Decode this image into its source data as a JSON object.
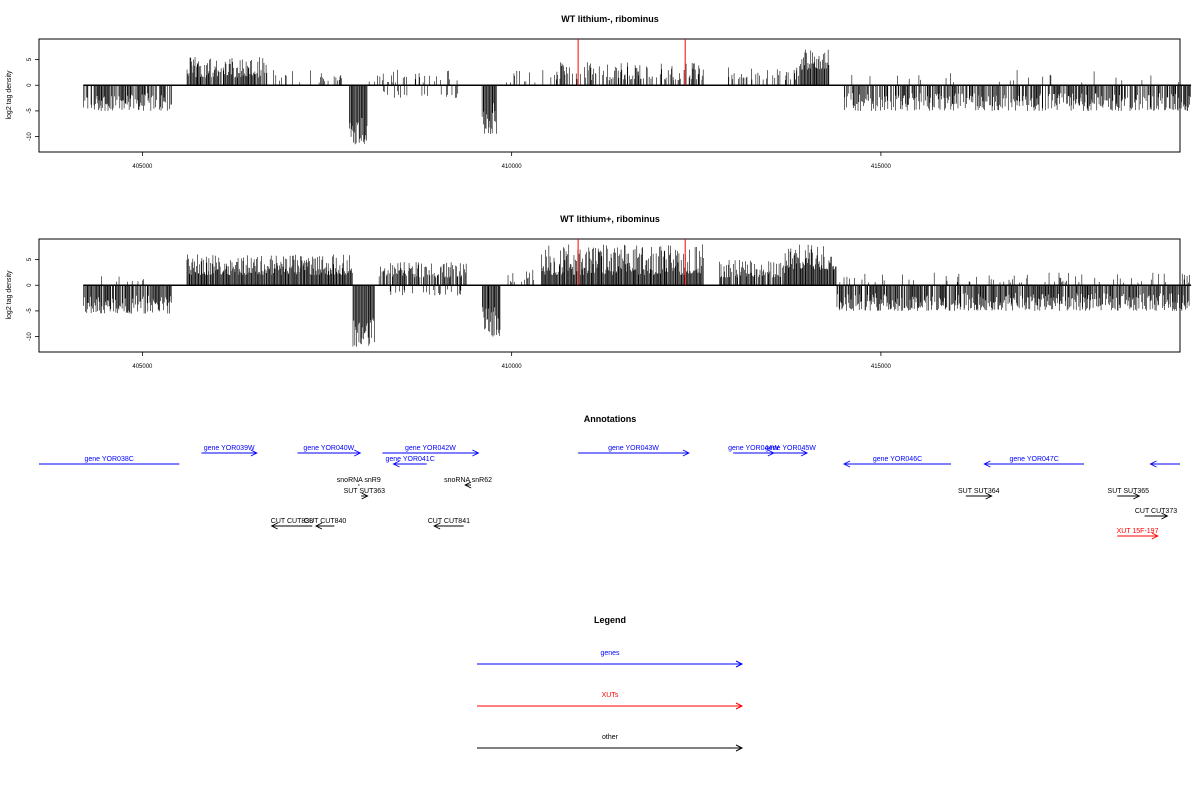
{
  "panels": [
    {
      "title": "WT lithium-, ribominus",
      "ylabel": "log2 tag density",
      "chart_data": {
        "type": "bar",
        "title": "WT lithium-, ribominus",
        "ylabel": "log2 tag density",
        "xlabel": "",
        "xlim": [
          403600,
          419050
        ],
        "ylim": [
          -13,
          9
        ],
        "xticks": [
          405000,
          410000,
          415000
        ],
        "yticks": [
          -10,
          -5,
          0,
          5
        ],
        "baseline": [
          404200,
          419200
        ],
        "regions": [
          {
            "x": [
              404200,
              405400
            ],
            "y": [
              -5,
              -1.5
            ],
            "density": 0.75
          },
          {
            "x": [
              405600,
              406700
            ],
            "y": [
              1.5,
              5.5
            ],
            "density": 0.9
          },
          {
            "x": [
              406700,
              407700
            ],
            "y": [
              0.5,
              3
            ],
            "density": 0.2
          },
          {
            "x": [
              407800,
              408050
            ],
            "y": [
              -11.5,
              -5
            ],
            "density": 1.0
          },
          {
            "x": [
              408050,
              409300
            ],
            "y": [
              0.5,
              3
            ],
            "density": 0.3
          },
          {
            "x": [
              408250,
              409300
            ],
            "y": [
              -2.5,
              -1
            ],
            "density": 0.15
          },
          {
            "x": [
              409600,
              409800
            ],
            "y": [
              -9.5,
              -3
            ],
            "density": 1.0
          },
          {
            "x": [
              409800,
              410600
            ],
            "y": [
              0.5,
              3
            ],
            "density": 0.15
          },
          {
            "x": [
              410600,
              412600
            ],
            "y": [
              1,
              4.5
            ],
            "density": 0.55
          },
          {
            "x": [
              412900,
              413900
            ],
            "y": [
              1,
              3.5
            ],
            "density": 0.35
          },
          {
            "x": [
              413900,
              414300
            ],
            "y": [
              3,
              7
            ],
            "density": 0.95
          },
          {
            "x": [
              414500,
              419200
            ],
            "y": [
              -5,
              -1.5
            ],
            "density": 0.75
          },
          {
            "x": [
              414600,
              419100
            ],
            "y": [
              0.5,
              3
            ],
            "density": 0.06
          }
        ],
        "highlight": {
          "x": [
            410900,
            412350
          ],
          "y": 9,
          "color": "#ff0000"
        },
        "bar_color": "#000000"
      }
    },
    {
      "title": "WT lithium+, ribominus",
      "ylabel": "log2 tag density",
      "chart_data": {
        "type": "bar",
        "title": "WT lithium+, ribominus",
        "ylabel": "log2 tag density",
        "xlabel": "",
        "xlim": [
          403600,
          419050
        ],
        "ylim": [
          -13,
          9
        ],
        "xticks": [
          405000,
          410000,
          415000
        ],
        "yticks": [
          -10,
          -5,
          0,
          5
        ],
        "baseline": [
          404200,
          419200
        ],
        "regions": [
          {
            "x": [
              404200,
              405400
            ],
            "y": [
              -5.5,
              -2
            ],
            "density": 0.85
          },
          {
            "x": [
              404400,
              405300
            ],
            "y": [
              0.5,
              2.5
            ],
            "density": 0.05
          },
          {
            "x": [
              405600,
              407850
            ],
            "y": [
              2,
              6
            ],
            "density": 1.0
          },
          {
            "x": [
              407850,
              408150
            ],
            "y": [
              -12,
              -6
            ],
            "density": 1.0
          },
          {
            "x": [
              408200,
              409400
            ],
            "y": [
              1.5,
              4.5
            ],
            "density": 0.7
          },
          {
            "x": [
              408300,
              409400
            ],
            "y": [
              -2,
              -0.8
            ],
            "density": 0.2
          },
          {
            "x": [
              409600,
              409850
            ],
            "y": [
              -10,
              -4
            ],
            "density": 1.0
          },
          {
            "x": [
              409850,
              410300
            ],
            "y": [
              0.5,
              3
            ],
            "density": 0.25
          },
          {
            "x": [
              410400,
              412600
            ],
            "y": [
              2,
              8
            ],
            "density": 1.0
          },
          {
            "x": [
              412800,
              413700
            ],
            "y": [
              1.5,
              5
            ],
            "density": 0.8
          },
          {
            "x": [
              413700,
              414400
            ],
            "y": [
              3,
              8
            ],
            "density": 1.0
          },
          {
            "x": [
              414400,
              419200
            ],
            "y": [
              -5,
              -1.5
            ],
            "density": 0.85
          },
          {
            "x": [
              414400,
              419200
            ],
            "y": [
              0.5,
              2.5
            ],
            "density": 0.15
          }
        ],
        "highlight": {
          "x": [
            410900,
            412350
          ],
          "y": 9,
          "color": "#ff0000"
        },
        "bar_color": "#000000"
      }
    }
  ],
  "x_tick_labels": [
    "405000",
    "410000",
    "415000"
  ],
  "y_tick_labels": [
    "-10",
    "-5",
    "0",
    "5"
  ],
  "annotations": {
    "title": "Annotations",
    "items": [
      {
        "label": "gene YOR038C",
        "x": [
          403600,
          405500
        ],
        "level": 1,
        "dir": "none",
        "color": "#0000ff"
      },
      {
        "label": "gene YOR039W",
        "x": [
          405800,
          406550
        ],
        "level": 0,
        "dir": "right",
        "color": "#0000ff"
      },
      {
        "label": "gene YOR040W",
        "x": [
          407100,
          407950
        ],
        "level": 0,
        "dir": "right",
        "color": "#0000ff"
      },
      {
        "label": "gene YOR041C",
        "x": [
          408400,
          408850
        ],
        "level": 1,
        "dir": "left",
        "color": "#0000ff"
      },
      {
        "label": "gene YOR042W",
        "x": [
          408250,
          409550
        ],
        "level": 0,
        "dir": "right",
        "color": "#0000ff"
      },
      {
        "label": "gene YOR043W",
        "x": [
          410900,
          412400
        ],
        "level": 0,
        "dir": "right",
        "color": "#0000ff"
      },
      {
        "label": "gene YOR044W",
        "x": [
          413000,
          413550
        ],
        "level": 0,
        "dir": "right",
        "color": "#0000ff"
      },
      {
        "label": "gene YOR045W",
        "x": [
          413550,
          414000
        ],
        "level": 0,
        "dir": "right",
        "color": "#0000ff"
      },
      {
        "label": "gene YOR046C",
        "x": [
          414500,
          415950
        ],
        "level": 1,
        "dir": "left",
        "color": "#0000ff"
      },
      {
        "label": "gene YOR047C",
        "x": [
          416400,
          417750
        ],
        "level": 1,
        "dir": "left",
        "color": "#0000ff"
      },
      {
        "label": "",
        "x": [
          418650,
          419050
        ],
        "level": 1,
        "dir": "left",
        "color": "#0000ff"
      },
      {
        "label": "snoRNA snR9",
        "x": [
          407920,
          407940
        ],
        "level": 2,
        "dir": "none",
        "color": "#000000"
      },
      {
        "label": "SUT SUT363",
        "x": [
          407960,
          408050
        ],
        "level": 3,
        "dir": "right",
        "color": "#000000"
      },
      {
        "label": "snoRNA snR62",
        "x": [
          409370,
          409450
        ],
        "level": 2,
        "dir": "left",
        "color": "#000000"
      },
      {
        "label": "SUT SUT364",
        "x": [
          416150,
          416500
        ],
        "level": 3,
        "dir": "right",
        "color": "#000000"
      },
      {
        "label": "SUT SUT365",
        "x": [
          418200,
          418500
        ],
        "level": 3,
        "dir": "right",
        "color": "#000000"
      },
      {
        "label": "CUT CUT838",
        "x": [
          406750,
          407300
        ],
        "level": 5,
        "dir": "left",
        "color": "#000000"
      },
      {
        "label": "CUT CUT840",
        "x": [
          407350,
          407600
        ],
        "level": 5,
        "dir": "left",
        "color": "#000000"
      },
      {
        "label": "CUT CUT841",
        "x": [
          408950,
          409350
        ],
        "level": 5,
        "dir": "left",
        "color": "#000000"
      },
      {
        "label": "CUT CUT373",
        "x": [
          418570,
          418880
        ],
        "level": 4,
        "dir": "right",
        "color": "#000000"
      },
      {
        "label": "XUT 15F-197",
        "x": [
          418200,
          418750
        ],
        "level": 6,
        "dir": "right",
        "color": "#ff0000"
      }
    ]
  },
  "legend": {
    "title": "Legend",
    "items": [
      {
        "label": "genes",
        "color": "#0000ff"
      },
      {
        "label": "XUTs",
        "color": "#ff0000"
      },
      {
        "label": "other",
        "color": "#000000"
      }
    ]
  }
}
